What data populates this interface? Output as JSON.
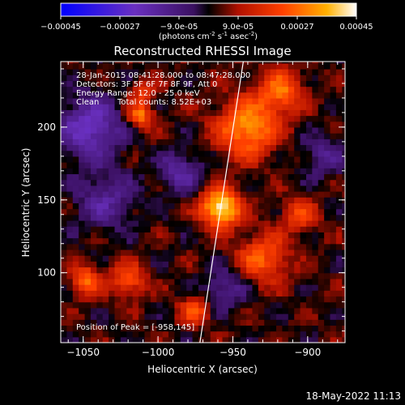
{
  "chart_data": {
    "type": "heatmap",
    "title": "Reconstructed RHESSI Image",
    "xlabel": "Heliocentric X (arcsec)",
    "ylabel": "Heliocentric Y (arcsec)",
    "xlim": [
      -1065,
      -875
    ],
    "ylim": [
      52,
      245
    ],
    "xticks": [
      -1050,
      -1000,
      -950,
      -900
    ],
    "yticks": [
      100,
      150,
      200
    ],
    "colorbar": {
      "range": [
        -0.00045,
        0.00045
      ],
      "ticks": [
        "-0.00045",
        "-0.00027",
        "-9.0e-05",
        "9.0e-05",
        "0.00027",
        "0.00045"
      ],
      "unit_prefix": "(photons cm",
      "unit_exp1": "-2",
      "unit_mid": " s",
      "unit_exp2": "-1",
      "unit_mid2": " asec",
      "unit_exp3": "-2",
      "unit_suffix": ")"
    },
    "annotations": [
      "28-Jan-2015 08:41:28.000 to 08:47:28.000",
      "Detectors: 3F 5F 6F 7F 8F 9F, Att 0",
      "Energy Range: 12.0 - 25.0 keV",
      "Clean",
      "Total counts: 8.52E+03"
    ],
    "peak_label": "Position of Peak = [-958,145]",
    "peak": [
      -958,
      145
    ],
    "limb_line": [
      [
        -972,
        52
      ],
      [
        -943,
        245
      ]
    ],
    "sources": [
      {
        "x": -958,
        "y": 145,
        "amp": 1.0,
        "sigma": 9
      },
      {
        "x": -940,
        "y": 200,
        "amp": 0.7,
        "sigma": 14
      },
      {
        "x": -918,
        "y": 225,
        "amp": 0.55,
        "sigma": 10
      },
      {
        "x": -1012,
        "y": 208,
        "amp": 0.6,
        "sigma": 6
      },
      {
        "x": -1048,
        "y": 95,
        "amp": 0.55,
        "sigma": 7
      },
      {
        "x": -1020,
        "y": 95,
        "amp": 0.5,
        "sigma": 8
      },
      {
        "x": -930,
        "y": 110,
        "amp": 0.5,
        "sigma": 12
      },
      {
        "x": -905,
        "y": 140,
        "amp": 0.4,
        "sigma": 8
      },
      {
        "x": -975,
        "y": 75,
        "amp": 0.45,
        "sigma": 7
      },
      {
        "x": -1010,
        "y": 225,
        "amp": 0.35,
        "sigma": 6
      },
      {
        "x": -1045,
        "y": 200,
        "amp": -0.55,
        "sigma": 15
      },
      {
        "x": -1035,
        "y": 150,
        "amp": -0.35,
        "sigma": 14
      },
      {
        "x": -985,
        "y": 170,
        "amp": -0.4,
        "sigma": 10
      },
      {
        "x": -955,
        "y": 90,
        "amp": -0.35,
        "sigma": 10
      },
      {
        "x": -890,
        "y": 180,
        "amp": -0.3,
        "sigma": 10
      }
    ]
  },
  "timestamp": "18-May-2022 11:13"
}
